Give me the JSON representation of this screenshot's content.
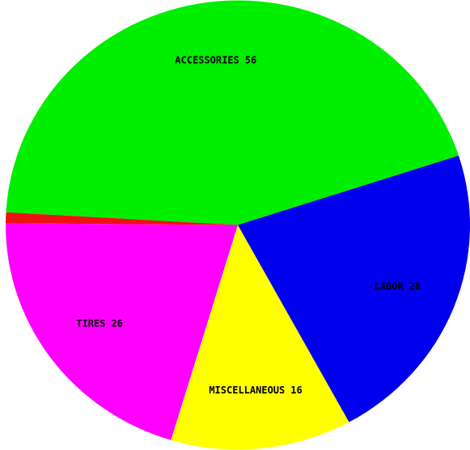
{
  "chart_data": {
    "type": "pie",
    "categories": [
      "ACCESSORIES",
      null,
      "TIRES",
      "MISCELLANEOUS",
      "LABOR"
    ],
    "values": [
      56,
      1,
      26,
      16,
      28
    ],
    "colors": [
      "#00ee00",
      "#ee1111",
      "#ff00ff",
      "#ffff00",
      "#0000ee"
    ]
  }
}
